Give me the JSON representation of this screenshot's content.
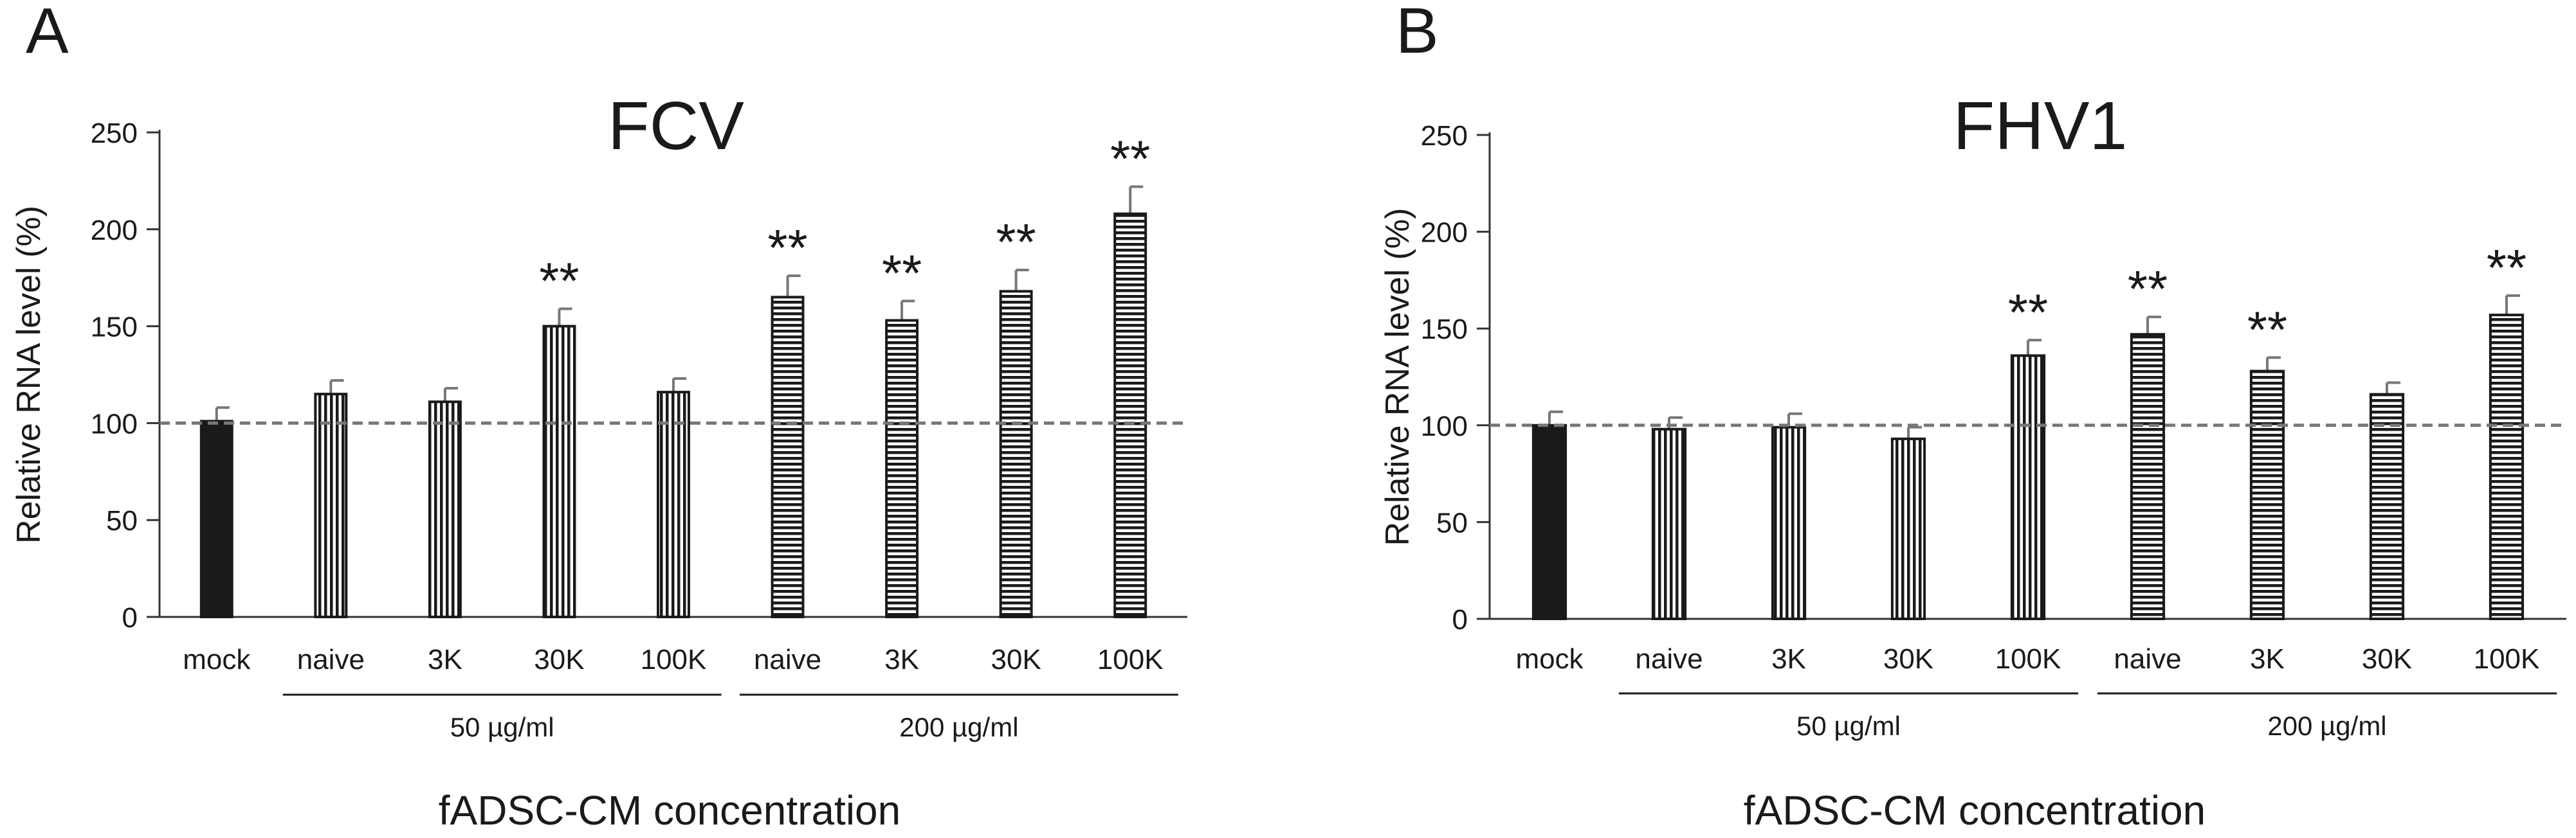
{
  "chart_data": [
    {
      "type": "bar",
      "panel_label": "A",
      "title": "FCV",
      "ylabel": "Relative RNA level (%)",
      "xlabel": "fADSC-CM concentration",
      "ylim": [
        0,
        250
      ],
      "yticks": [
        0,
        50,
        100,
        150,
        200,
        250
      ],
      "reference_line": 100,
      "categories": [
        "mock",
        "naive",
        "3K",
        "30K",
        "100K",
        "naive",
        "3K",
        "30K",
        "100K"
      ],
      "values": [
        101,
        115,
        111,
        150,
        116,
        165,
        153,
        168,
        208
      ],
      "errors": [
        7,
        7,
        7,
        9,
        7,
        11,
        10,
        11,
        14
      ],
      "significance": [
        "",
        "",
        "",
        "**",
        "",
        "**",
        "**",
        "**",
        "**"
      ],
      "patterns": [
        "solid",
        "vertical",
        "vertical",
        "vertical",
        "vertical",
        "horizontal",
        "horizontal",
        "horizontal",
        "horizontal"
      ],
      "groups": [
        {
          "label": "50 µg/ml",
          "start": 1,
          "end": 4
        },
        {
          "label": "200 µg/ml",
          "start": 5,
          "end": 8
        }
      ]
    },
    {
      "type": "bar",
      "panel_label": "B",
      "title": "FHV1",
      "ylabel": "Relative RNA level (%)",
      "xlabel": "fADSC-CM concentration",
      "ylim": [
        0,
        250
      ],
      "yticks": [
        0,
        50,
        100,
        150,
        200,
        250
      ],
      "reference_line": 100,
      "categories": [
        "mock",
        "naive",
        "3K",
        "30K",
        "100K",
        "naive",
        "3K",
        "30K",
        "100K"
      ],
      "values": [
        100,
        98,
        99,
        93,
        136,
        147,
        128,
        116,
        157
      ],
      "errors": [
        7,
        6,
        7,
        6,
        8,
        9,
        7,
        6,
        10
      ],
      "significance": [
        "",
        "",
        "",
        "",
        "**",
        "**",
        "**",
        "",
        "**"
      ],
      "patterns": [
        "solid",
        "vertical",
        "vertical",
        "vertical",
        "vertical",
        "horizontal",
        "horizontal",
        "horizontal",
        "horizontal"
      ],
      "groups": [
        {
          "label": "50 µg/ml",
          "start": 1,
          "end": 4
        },
        {
          "label": "200 µg/ml",
          "start": 5,
          "end": 8
        }
      ]
    }
  ],
  "colors": {
    "ink": "#1a1a1a",
    "axis": "#333333",
    "error_bar": "#777777",
    "reference_line": "#777777",
    "background": "#ffffff"
  }
}
